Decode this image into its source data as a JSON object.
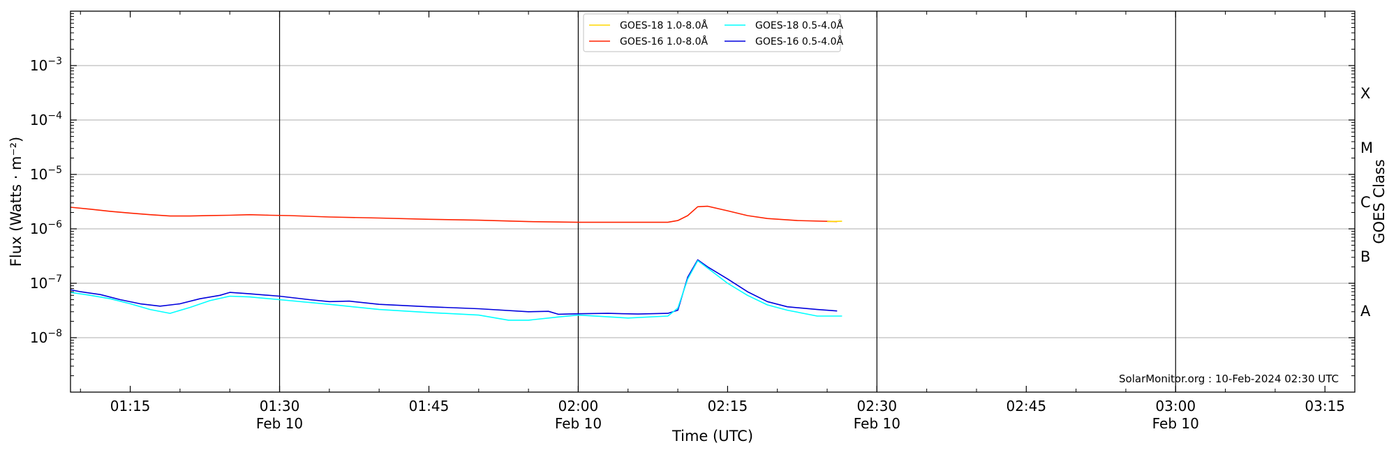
{
  "chart_data": {
    "type": "line",
    "xlabel": "Time (UTC)",
    "ylabel": "Flux (Watts · m⁻²)",
    "y2label": "GOES Class",
    "yscale": "log",
    "ylim": [
      1e-09,
      0.01
    ],
    "xlim": [
      "2024-02-10 01:09",
      "2024-02-10 03:18"
    ],
    "grid": "horizontal at decades",
    "legend_position": "top-center",
    "credit": "SolarMonitor.org : 10-Feb-2024 02:30 UTC",
    "x_ticks": [
      {
        "time": "2024-02-10 01:15",
        "label": "01:15",
        "sub": ""
      },
      {
        "time": "2024-02-10 01:30",
        "label": "01:30",
        "sub": "Feb 10"
      },
      {
        "time": "2024-02-10 01:45",
        "label": "01:45",
        "sub": ""
      },
      {
        "time": "2024-02-10 02:00",
        "label": "02:00",
        "sub": "Feb 10"
      },
      {
        "time": "2024-02-10 02:15",
        "label": "02:15",
        "sub": ""
      },
      {
        "time": "2024-02-10 02:30",
        "label": "02:30",
        "sub": "Feb 10"
      },
      {
        "time": "2024-02-10 02:45",
        "label": "02:45",
        "sub": ""
      },
      {
        "time": "2024-02-10 03:00",
        "label": "03:00",
        "sub": "Feb 10"
      },
      {
        "time": "2024-02-10 03:15",
        "label": "03:15",
        "sub": ""
      }
    ],
    "vlines": [
      "2024-02-10 01:30",
      "2024-02-10 02:00",
      "2024-02-10 02:30",
      "2024-02-10 03:00"
    ],
    "y_ticks": [
      {
        "value": 1e-08,
        "base": "10",
        "exp": "−8"
      },
      {
        "value": 1e-07,
        "base": "10",
        "exp": "−7"
      },
      {
        "value": 1e-06,
        "base": "10",
        "exp": "−6"
      },
      {
        "value": 1e-05,
        "base": "10",
        "exp": "−5"
      },
      {
        "value": 0.0001,
        "base": "10",
        "exp": "−4"
      },
      {
        "value": 0.001,
        "base": "10",
        "exp": "−3"
      }
    ],
    "goes_classes": [
      {
        "label": "A",
        "value": 3.16e-08
      },
      {
        "label": "B",
        "value": 3.16e-07
      },
      {
        "label": "C",
        "value": 3.16e-06
      },
      {
        "label": "M",
        "value": 3.16e-05
      },
      {
        "label": "X",
        "value": 0.000316
      }
    ],
    "series": [
      {
        "name": "GOES-16 1.0-8.0Å",
        "color": "#ff2200",
        "points": [
          [
            "2024-02-10 01:09",
            2.5e-06
          ],
          [
            "2024-02-10 01:11",
            2.3e-06
          ],
          [
            "2024-02-10 01:13",
            2.1e-06
          ],
          [
            "2024-02-10 01:15",
            1.95e-06
          ],
          [
            "2024-02-10 01:17",
            1.82e-06
          ],
          [
            "2024-02-10 01:19",
            1.72e-06
          ],
          [
            "2024-02-10 01:21",
            1.72e-06
          ],
          [
            "2024-02-10 01:23",
            1.76e-06
          ],
          [
            "2024-02-10 01:25",
            1.78e-06
          ],
          [
            "2024-02-10 01:27",
            1.82e-06
          ],
          [
            "2024-02-10 01:29",
            1.78e-06
          ],
          [
            "2024-02-10 01:31",
            1.75e-06
          ],
          [
            "2024-02-10 01:35",
            1.65e-06
          ],
          [
            "2024-02-10 01:40",
            1.58e-06
          ],
          [
            "2024-02-10 01:45",
            1.5e-06
          ],
          [
            "2024-02-10 01:50",
            1.44e-06
          ],
          [
            "2024-02-10 01:55",
            1.36e-06
          ],
          [
            "2024-02-10 02:00",
            1.32e-06
          ],
          [
            "2024-02-10 02:05",
            1.32e-06
          ],
          [
            "2024-02-10 02:09",
            1.32e-06
          ],
          [
            "2024-02-10 02:10",
            1.42e-06
          ],
          [
            "2024-02-10 02:11",
            1.75e-06
          ],
          [
            "2024-02-10 02:12",
            2.55e-06
          ],
          [
            "2024-02-10 02:13",
            2.6e-06
          ],
          [
            "2024-02-10 02:15",
            2.15e-06
          ],
          [
            "2024-02-10 02:17",
            1.75e-06
          ],
          [
            "2024-02-10 02:19",
            1.55e-06
          ],
          [
            "2024-02-10 02:22",
            1.42e-06
          ],
          [
            "2024-02-10 02:26",
            1.36e-06
          ]
        ]
      },
      {
        "name": "GOES-18 1.0-8.0Å",
        "color": "#ffd700",
        "points": [
          [
            "2024-02-10 02:25",
            1.36e-06
          ],
          [
            "2024-02-10 02:26.5",
            1.38e-06
          ]
        ]
      },
      {
        "name": "GOES-16 0.5-4.0Å",
        "color": "#0000dd",
        "points": [
          [
            "2024-02-10 01:09",
            7.6e-08
          ],
          [
            "2024-02-10 01:10",
            7e-08
          ],
          [
            "2024-02-10 01:12",
            6.2e-08
          ],
          [
            "2024-02-10 01:14",
            5e-08
          ],
          [
            "2024-02-10 01:16",
            4.2e-08
          ],
          [
            "2024-02-10 01:18",
            3.8e-08
          ],
          [
            "2024-02-10 01:20",
            4.2e-08
          ],
          [
            "2024-02-10 01:22",
            5.2e-08
          ],
          [
            "2024-02-10 01:24",
            6e-08
          ],
          [
            "2024-02-10 01:25",
            6.8e-08
          ],
          [
            "2024-02-10 01:27",
            6.4e-08
          ],
          [
            "2024-02-10 01:30",
            5.8e-08
          ],
          [
            "2024-02-10 01:33",
            5e-08
          ],
          [
            "2024-02-10 01:35",
            4.6e-08
          ],
          [
            "2024-02-10 01:37",
            4.7e-08
          ],
          [
            "2024-02-10 01:40",
            4.1e-08
          ],
          [
            "2024-02-10 01:45",
            3.7e-08
          ],
          [
            "2024-02-10 01:50",
            3.4e-08
          ],
          [
            "2024-02-10 01:55",
            3e-08
          ],
          [
            "2024-02-10 01:57",
            3.05e-08
          ],
          [
            "2024-02-10 01:58",
            2.7e-08
          ],
          [
            "2024-02-10 02:00",
            2.75e-08
          ],
          [
            "2024-02-10 02:03",
            2.8e-08
          ],
          [
            "2024-02-10 02:06",
            2.72e-08
          ],
          [
            "2024-02-10 02:09",
            2.8e-08
          ],
          [
            "2024-02-10 02:10",
            3.2e-08
          ],
          [
            "2024-02-10 02:11",
            1.3e-07
          ],
          [
            "2024-02-10 02:12",
            2.7e-07
          ],
          [
            "2024-02-10 02:13",
            2e-07
          ],
          [
            "2024-02-10 02:15",
            1.2e-07
          ],
          [
            "2024-02-10 02:17",
            7e-08
          ],
          [
            "2024-02-10 02:19",
            4.6e-08
          ],
          [
            "2024-02-10 02:21",
            3.7e-08
          ],
          [
            "2024-02-10 02:24",
            3.3e-08
          ],
          [
            "2024-02-10 02:26",
            3.1e-08
          ]
        ]
      },
      {
        "name": "GOES-18 0.5-4.0Å",
        "color": "#00ffff",
        "points": [
          [
            "2024-02-10 01:09",
            6.8e-08
          ],
          [
            "2024-02-10 01:11",
            6e-08
          ],
          [
            "2024-02-10 01:13",
            5.2e-08
          ],
          [
            "2024-02-10 01:15",
            4.2e-08
          ],
          [
            "2024-02-10 01:17",
            3.3e-08
          ],
          [
            "2024-02-10 01:19",
            2.8e-08
          ],
          [
            "2024-02-10 01:21",
            3.6e-08
          ],
          [
            "2024-02-10 01:23",
            4.8e-08
          ],
          [
            "2024-02-10 01:25",
            5.8e-08
          ],
          [
            "2024-02-10 01:27",
            5.6e-08
          ],
          [
            "2024-02-10 01:30",
            5e-08
          ],
          [
            "2024-02-10 01:35",
            4.1e-08
          ],
          [
            "2024-02-10 01:40",
            3.3e-08
          ],
          [
            "2024-02-10 01:45",
            2.9e-08
          ],
          [
            "2024-02-10 01:50",
            2.6e-08
          ],
          [
            "2024-02-10 01:53",
            2.1e-08
          ],
          [
            "2024-02-10 01:55",
            2.1e-08
          ],
          [
            "2024-02-10 01:58",
            2.4e-08
          ],
          [
            "2024-02-10 02:00",
            2.6e-08
          ],
          [
            "2024-02-10 02:05",
            2.3e-08
          ],
          [
            "2024-02-10 02:09",
            2.5e-08
          ],
          [
            "2024-02-10 02:10",
            3.5e-08
          ],
          [
            "2024-02-10 02:11",
            1.2e-07
          ],
          [
            "2024-02-10 02:12",
            2.6e-07
          ],
          [
            "2024-02-10 02:13",
            1.9e-07
          ],
          [
            "2024-02-10 02:15",
            1e-07
          ],
          [
            "2024-02-10 02:17",
            6e-08
          ],
          [
            "2024-02-10 02:19",
            4e-08
          ],
          [
            "2024-02-10 02:21",
            3.2e-08
          ],
          [
            "2024-02-10 02:24",
            2.5e-08
          ],
          [
            "2024-02-10 02:26.5",
            2.5e-08
          ]
        ]
      }
    ],
    "legend_order": [
      "GOES-18 1.0-8.0Å",
      "GOES-16 1.0-8.0Å",
      "GOES-18 0.5-4.0Å",
      "GOES-16 0.5-4.0Å"
    ]
  }
}
